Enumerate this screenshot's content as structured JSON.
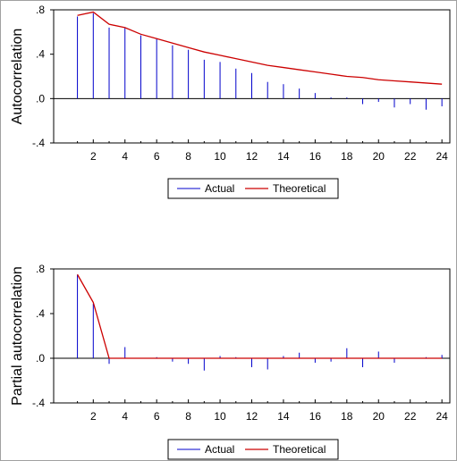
{
  "colors": {
    "actual": "#0000cc",
    "theoretical": "#cc0000",
    "axis": "#000000"
  },
  "chart_data": [
    {
      "type": "bar",
      "ylabel": "Autocorrelation",
      "ylim": [
        -0.4,
        0.8
      ],
      "yticks": [
        ".8",
        ".4",
        ".0",
        "-.4"
      ],
      "yticks_values": [
        0.8,
        0.4,
        0.0,
        -0.4
      ],
      "xlim": [
        0,
        24
      ],
      "xticks": [
        "2",
        "4",
        "6",
        "8",
        "10",
        "12",
        "14",
        "16",
        "18",
        "20",
        "22",
        "24"
      ],
      "legend": {
        "position": "bottom",
        "entries": [
          "Actual",
          "Theoretical"
        ]
      },
      "series": [
        {
          "name": "Actual",
          "type": "bar",
          "x": [
            1,
            2,
            3,
            4,
            5,
            6,
            7,
            8,
            9,
            10,
            11,
            12,
            13,
            14,
            15,
            16,
            17,
            18,
            19,
            20,
            21,
            22,
            23,
            24
          ],
          "values": [
            0.74,
            0.77,
            0.64,
            0.64,
            0.57,
            0.54,
            0.48,
            0.44,
            0.35,
            0.33,
            0.27,
            0.23,
            0.15,
            0.13,
            0.09,
            0.05,
            0.01,
            0.01,
            -0.05,
            -0.03,
            -0.08,
            -0.05,
            -0.1,
            -0.07
          ]
        },
        {
          "name": "Theoretical",
          "type": "line",
          "x": [
            1,
            2,
            3,
            4,
            5,
            6,
            7,
            8,
            9,
            10,
            11,
            12,
            13,
            14,
            15,
            16,
            17,
            18,
            19,
            20,
            21,
            22,
            23,
            24
          ],
          "values": [
            0.75,
            0.78,
            0.67,
            0.64,
            0.58,
            0.54,
            0.5,
            0.46,
            0.42,
            0.39,
            0.36,
            0.33,
            0.3,
            0.28,
            0.26,
            0.24,
            0.22,
            0.2,
            0.19,
            0.17,
            0.16,
            0.15,
            0.14,
            0.13
          ]
        }
      ]
    },
    {
      "type": "bar",
      "ylabel": "Partial autocorrelation",
      "ylim": [
        -0.4,
        0.8
      ],
      "yticks": [
        ".8",
        ".4",
        ".0",
        "-.4"
      ],
      "yticks_values": [
        0.8,
        0.4,
        0.0,
        -0.4
      ],
      "xlim": [
        0,
        24
      ],
      "xticks": [
        "2",
        "4",
        "6",
        "8",
        "10",
        "12",
        "14",
        "16",
        "18",
        "20",
        "22",
        "24"
      ],
      "legend": {
        "position": "bottom",
        "entries": [
          "Actual",
          "Theoretical"
        ]
      },
      "series": [
        {
          "name": "Actual",
          "type": "bar",
          "x": [
            1,
            2,
            3,
            4,
            5,
            6,
            7,
            8,
            9,
            10,
            11,
            12,
            13,
            14,
            15,
            16,
            17,
            18,
            19,
            20,
            21,
            22,
            23,
            24
          ],
          "values": [
            0.75,
            0.49,
            -0.05,
            0.1,
            0.0,
            0.01,
            -0.03,
            -0.05,
            -0.11,
            0.02,
            0.01,
            -0.08,
            -0.1,
            0.02,
            0.05,
            -0.04,
            -0.03,
            0.09,
            -0.08,
            0.06,
            -0.04,
            0.0,
            0.01,
            0.03
          ]
        },
        {
          "name": "Theoretical",
          "type": "line",
          "x": [
            1,
            2,
            3,
            4,
            5,
            6,
            7,
            8,
            9,
            10,
            11,
            12,
            13,
            14,
            15,
            16,
            17,
            18,
            19,
            20,
            21,
            22,
            23,
            24
          ],
          "values": [
            0.75,
            0.5,
            0.0,
            0.0,
            0.0,
            0.0,
            0.0,
            0.0,
            0.0,
            0.0,
            0.0,
            0.0,
            0.0,
            0.0,
            0.0,
            0.0,
            0.0,
            0.0,
            0.0,
            0.0,
            0.0,
            0.0,
            0.0,
            0.0
          ]
        }
      ]
    }
  ]
}
